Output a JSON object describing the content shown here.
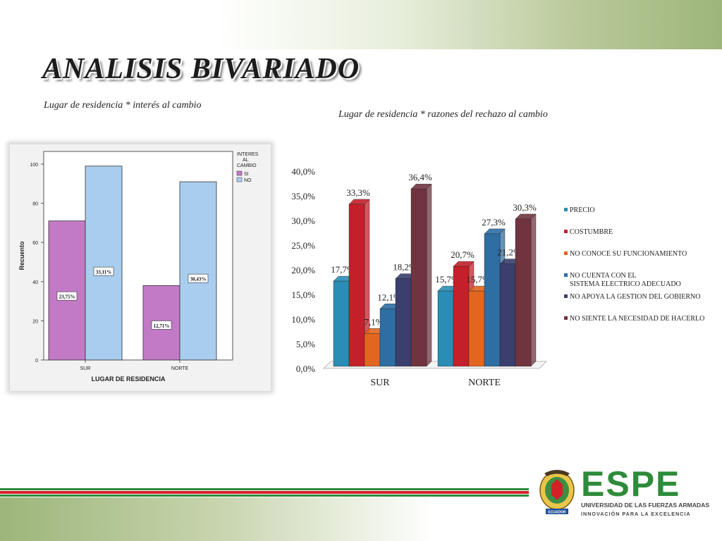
{
  "slide": {
    "title": "ANALISIS BIVARIADO",
    "subtitle_left": "Lugar de residencia * interés al cambio",
    "subtitle_right": "Lugar de residencia * razones del rechazo  al cambio"
  },
  "colors": {
    "accent_green": "#2e8b3b",
    "accent_red": "#d42027",
    "si": "#c27ac6",
    "no": "#a9cdee"
  },
  "chart_data": [
    {
      "type": "bar",
      "xlabel": "LUGAR DE RESIDENCIA",
      "ylabel": "Recuento",
      "ylim": [
        0,
        100
      ],
      "yticks": [
        "0",
        "20",
        "40",
        "60",
        "80",
        "100"
      ],
      "categories": [
        "SUR",
        "NORTE"
      ],
      "legend_title": "INTERES AL CAMBIO",
      "legend_placement": "right",
      "series": [
        {
          "name": "SI",
          "values": [
            71,
            38
          ],
          "labels": [
            "23,75%",
            "12,71%"
          ]
        },
        {
          "name": "NO",
          "values": [
            99,
            91
          ],
          "labels": [
            "33,11%",
            "30,43%"
          ]
        }
      ]
    },
    {
      "type": "bar",
      "ylim": [
        0,
        40
      ],
      "yticks": [
        "0,0%",
        "5,0%",
        "10,0%",
        "15,0%",
        "20,0%",
        "25,0%",
        "30,0%",
        "35,0%",
        "40,0%"
      ],
      "categories": [
        "SUR",
        "NORTE"
      ],
      "legend_placement": "right",
      "series": [
        {
          "name": "PRECIO",
          "values": [
            17.7,
            15.7
          ],
          "labels": [
            "17,7%",
            "15,7%"
          ],
          "color": "#2a8db5"
        },
        {
          "name": "COSTUMBRE",
          "values": [
            33.3,
            20.7
          ],
          "labels": [
            "33,3%",
            "20,7%"
          ],
          "color": "#c4202a"
        },
        {
          "name": "NO CONOCE SU FUNCIONAMIENTO",
          "values": [
            7.1,
            15.7
          ],
          "labels": [
            "7,1%",
            "15,7%"
          ],
          "color": "#e2661f"
        },
        {
          "name": "NO CUENTA CON EL SISTEMA ELECTRICO ADECUADO",
          "values": [
            12.1,
            27.3
          ],
          "labels": [
            "12,1%",
            "27,3%"
          ],
          "color": "#2e6ea3"
        },
        {
          "name": "NO APOYA LA GESTION DEL GOBIERNO",
          "values": [
            18.2,
            21.2
          ],
          "labels": [
            "18,2%",
            "21,2%"
          ],
          "color": "#3a3f6e"
        },
        {
          "name": "NO SIENTE LA NECESIDAD DE HACERLO",
          "values": [
            36.4,
            30.3
          ],
          "labels": [
            "36,4%",
            "30,3%"
          ],
          "color": "#70343f"
        }
      ]
    }
  ],
  "logo": {
    "name": "ESPE",
    "line1": "UNIVERSIDAD DE LAS FUERZAS ARMADAS",
    "line2": "INNOVACIÓN  PARA  LA  EXCELENCIA",
    "emblem_text": "ECUADOR"
  }
}
